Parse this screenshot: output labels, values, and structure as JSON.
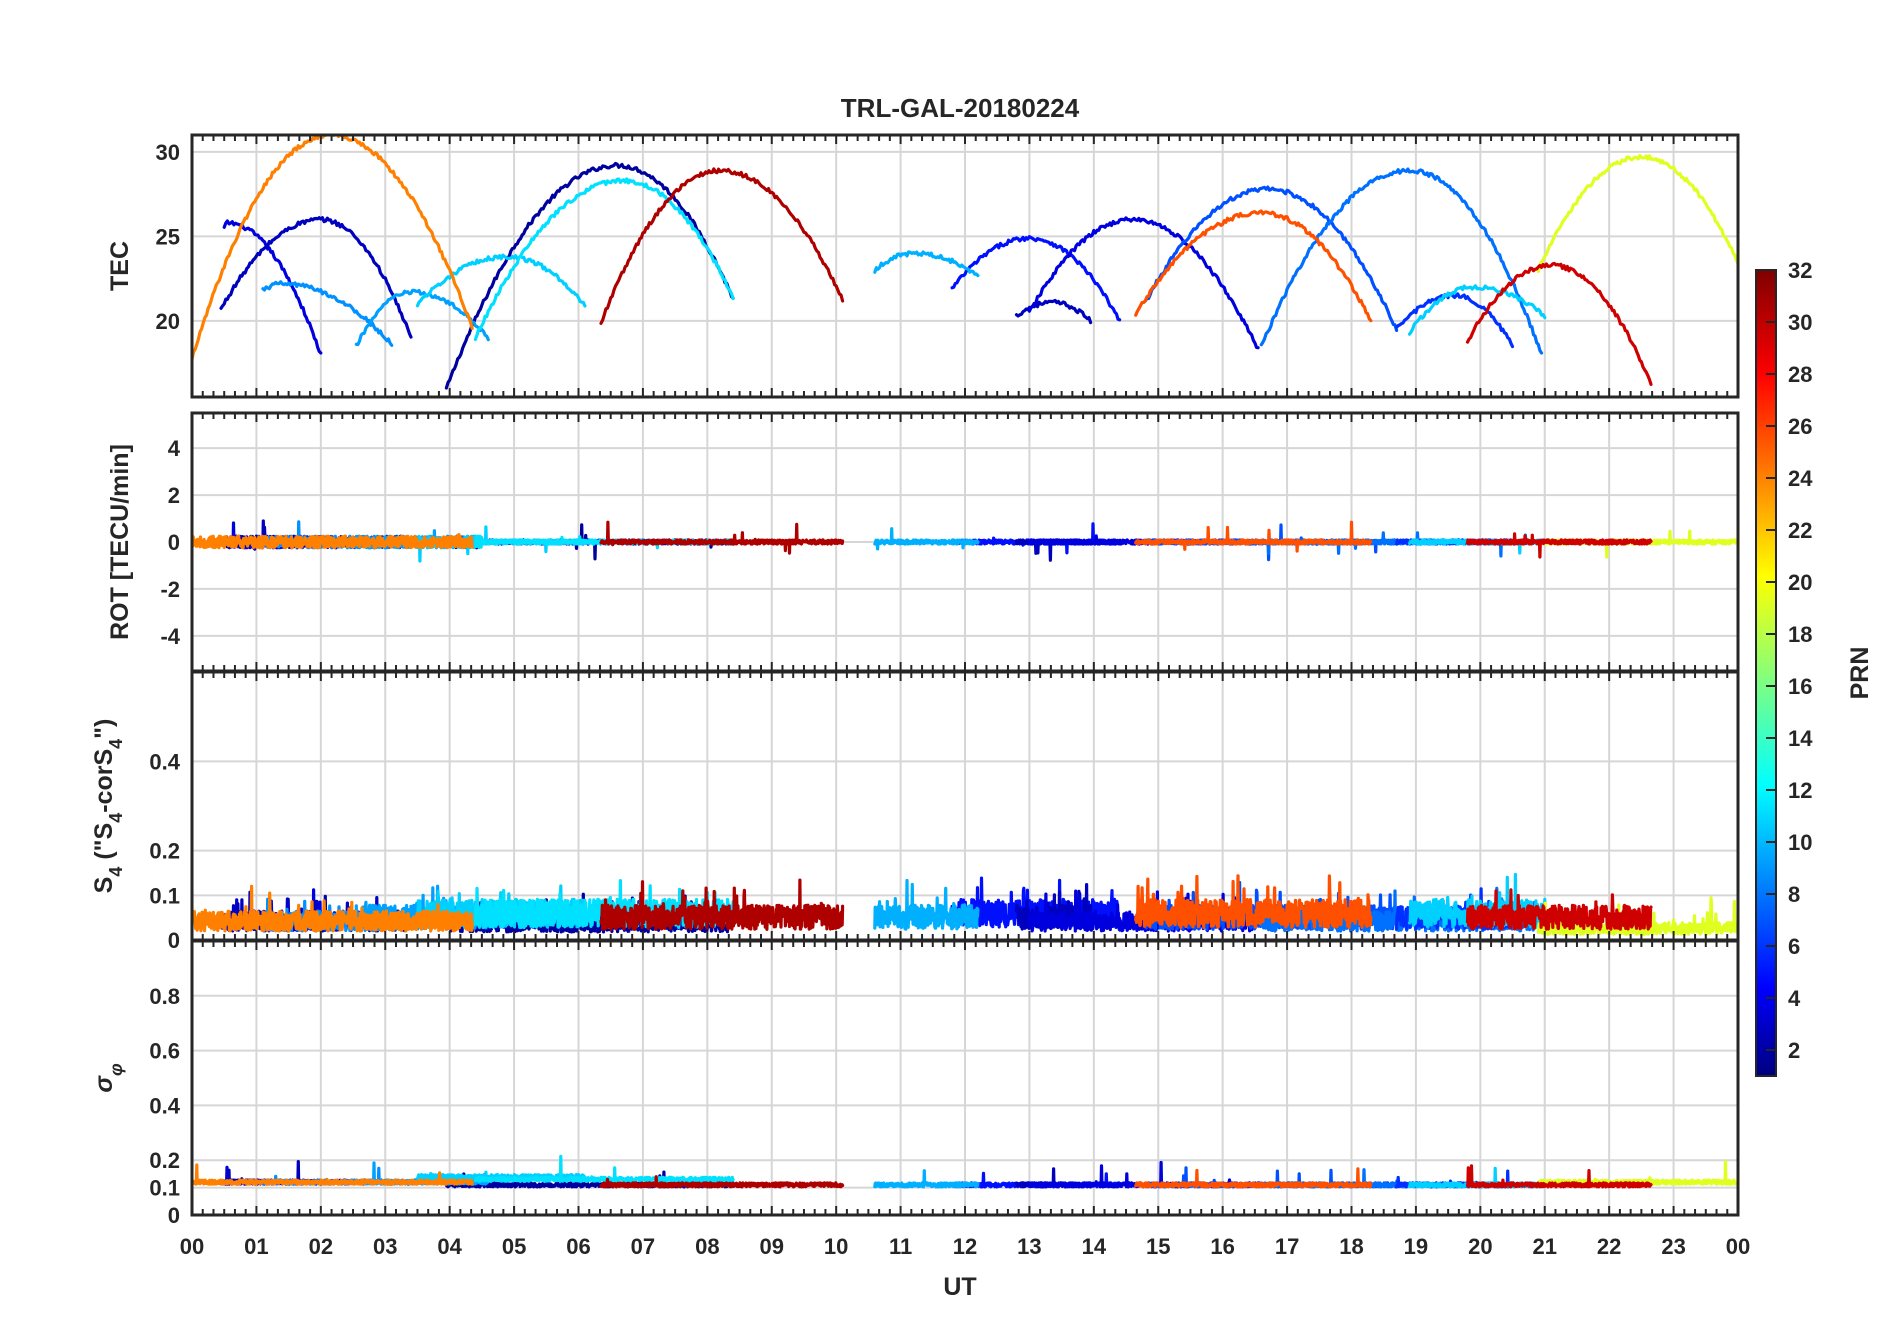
{
  "chart_data": {
    "type": "line",
    "title": "TRL-GAL-20180224",
    "xlabel": "UT",
    "x_tick_labels": [
      "00",
      "01",
      "02",
      "03",
      "04",
      "05",
      "06",
      "07",
      "08",
      "09",
      "10",
      "11",
      "12",
      "13",
      "14",
      "15",
      "16",
      "17",
      "18",
      "19",
      "20",
      "21",
      "22",
      "23",
      "00"
    ],
    "xlim": [
      0,
      24
    ],
    "grid": true,
    "colorbar": {
      "label": "PRN",
      "range": [
        1,
        32
      ],
      "ticks": [
        "2",
        "4",
        "6",
        "8",
        "10",
        "12",
        "14",
        "16",
        "18",
        "20",
        "22",
        "24",
        "26",
        "28",
        "30",
        "32"
      ],
      "colormap": "jet",
      "position": "right"
    },
    "panels": [
      {
        "id": "tec",
        "ylabel": "TEC",
        "ylim": [
          15.5,
          31
        ],
        "yticks": [
          "20",
          "25",
          "30"
        ]
      },
      {
        "id": "rot",
        "ylabel": "ROT [TECU/min]",
        "ylim": [
          -5.5,
          5.5
        ],
        "yticks": [
          "-4",
          "-2",
          "0",
          "2",
          "4"
        ]
      },
      {
        "id": "s4",
        "ylabel_parts": [
          "S",
          "4",
          " (\"S",
          "4",
          "-corS",
          "4",
          "\")"
        ],
        "ylim": [
          0,
          0.6
        ],
        "yticks": [
          "0",
          "0.1",
          "0.2",
          "0.4"
        ]
      },
      {
        "id": "sigma",
        "ylabel_parts": [
          "σ",
          "φ"
        ],
        "ylim": [
          0,
          1
        ],
        "yticks": [
          "0",
          "0.1",
          "0.2",
          "0.4",
          "0.6",
          "0.8"
        ]
      }
    ],
    "series": [
      {
        "name": "PRN 2",
        "prn": 2,
        "color": "#00009f",
        "ut_start": 3.95,
        "ut_end": 8.4,
        "peak_ut": 6.6,
        "tec_start": 16.0,
        "tec_peak": 29.2,
        "tec_end": 21.3,
        "s4_level": 0.045,
        "sigma_level": 0.11
      },
      {
        "name": "PRN 4",
        "prn": 4,
        "color": "#0000df",
        "ut_start": 0.5,
        "ut_end": 2.0,
        "peak_ut": 0.55,
        "tec_start": 25.5,
        "tec_peak": 25.8,
        "tec_end": 18.0,
        "s4_level": 0.05,
        "sigma_level": 0.12
      },
      {
        "name": "PRN 3",
        "prn": 3,
        "color": "#0000bf",
        "ut_start": 0.45,
        "ut_end": 3.4,
        "peak_ut": 2.0,
        "tec_start": 20.7,
        "tec_peak": 26.0,
        "tec_end": 19.0,
        "s4_level": 0.05,
        "sigma_level": 0.12
      },
      {
        "name": "PRN 5",
        "prn": 5,
        "color": "#0010ff",
        "ut_start": 11.8,
        "ut_end": 14.4,
        "peak_ut": 13.0,
        "tec_start": 21.9,
        "tec_peak": 24.9,
        "tec_end": 20.0,
        "s4_level": 0.07,
        "sigma_level": 0.11
      },
      {
        "name": "PRN 3b",
        "prn": 3,
        "color": "#0000bf",
        "ut_start": 12.8,
        "ut_end": 13.95,
        "peak_ut": 13.35,
        "tec_start": 20.3,
        "tec_peak": 21.1,
        "tec_end": 20.0,
        "s4_level": 0.06,
        "sigma_level": 0.11
      },
      {
        "name": "PRN 4b",
        "prn": 4,
        "color": "#0000df",
        "ut_start": 13.0,
        "ut_end": 16.55,
        "peak_ut": 14.6,
        "tec_start": 20.5,
        "tec_peak": 26.0,
        "tec_end": 18.3,
        "s4_level": 0.05,
        "sigma_level": 0.11
      },
      {
        "name": "PRN 7",
        "prn": 7,
        "color": "#0050ff",
        "ut_start": 14.8,
        "ut_end": 18.7,
        "peak_ut": 16.7,
        "tec_start": 21.1,
        "tec_peak": 27.8,
        "tec_end": 19.5,
        "s4_level": 0.06,
        "sigma_level": 0.11
      },
      {
        "name": "PRN 8",
        "prn": 8,
        "color": "#0070ff",
        "ut_start": 16.6,
        "ut_end": 20.95,
        "peak_ut": 18.9,
        "tec_start": 18.5,
        "tec_peak": 28.9,
        "tec_end": 18.0,
        "s4_level": 0.05,
        "sigma_level": 0.11
      },
      {
        "name": "PRN 9",
        "prn": 9,
        "color": "#0090ff",
        "ut_start": 1.1,
        "ut_end": 3.1,
        "peak_ut": 1.4,
        "tec_start": 21.8,
        "tec_peak": 22.2,
        "tec_end": 18.6,
        "s4_level": 0.05,
        "sigma_level": 0.12
      },
      {
        "name": "PRN 10",
        "prn": 10,
        "color": "#00a0ff",
        "ut_start": 2.55,
        "ut_end": 4.6,
        "peak_ut": 3.4,
        "tec_start": 18.5,
        "tec_peak": 21.7,
        "tec_end": 19.0,
        "s4_level": 0.06,
        "sigma_level": 0.12
      },
      {
        "name": "PRN 6",
        "prn": 6,
        "color": "#0030ff",
        "ut_start": 18.7,
        "ut_end": 20.5,
        "peak_ut": 19.6,
        "tec_start": 19.5,
        "tec_peak": 21.5,
        "tec_end": 18.5,
        "s4_level": 0.06,
        "sigma_level": 0.11
      },
      {
        "name": "PRN 11",
        "prn": 11,
        "color": "#00b0ff",
        "ut_start": 10.6,
        "ut_end": 12.2,
        "peak_ut": 11.2,
        "tec_start": 23.0,
        "tec_peak": 24.0,
        "tec_end": 22.7,
        "s4_level": 0.06,
        "sigma_level": 0.11
      },
      {
        "name": "PRN 12",
        "prn": 12,
        "color": "#00d0ff",
        "ut_start": 3.5,
        "ut_end": 6.1,
        "peak_ut": 4.9,
        "tec_start": 21.0,
        "tec_peak": 23.8,
        "tec_end": 20.9,
        "s4_level": 0.07,
        "sigma_level": 0.14
      },
      {
        "name": "PRN 13",
        "prn": 13,
        "color": "#00e0ff",
        "ut_start": 4.4,
        "ut_end": 8.4,
        "peak_ut": 6.7,
        "tec_start": 19.0,
        "tec_peak": 28.3,
        "tec_end": 21.4,
        "s4_level": 0.07,
        "sigma_level": 0.13
      },
      {
        "name": "PRN 12b",
        "prn": 12,
        "color": "#00d0ff",
        "ut_start": 18.9,
        "ut_end": 21.0,
        "peak_ut": 19.9,
        "tec_start": 19.3,
        "tec_peak": 22.0,
        "tec_end": 20.3,
        "s4_level": 0.07,
        "sigma_level": 0.11
      },
      {
        "name": "PRN 20",
        "prn": 20,
        "color": "#dfff20",
        "ut_start": 20.9,
        "ut_end": 24.0,
        "peak_ut": 22.5,
        "tec_start": 23.0,
        "tec_peak": 29.7,
        "tec_end": 23.4,
        "s4_level": 0.03,
        "sigma_level": 0.12
      },
      {
        "name": "PRN 24",
        "prn": 24,
        "color": "#ff8000",
        "ut_start": 0.0,
        "ut_end": 4.35,
        "peak_ut": 2.15,
        "tec_start": 17.8,
        "tec_peak": 31.0,
        "tec_end": 19.6,
        "s4_level": 0.05,
        "sigma_level": 0.12
      },
      {
        "name": "PRN 26",
        "prn": 26,
        "color": "#ff5000",
        "ut_start": 14.65,
        "ut_end": 18.3,
        "peak_ut": 16.6,
        "tec_start": 20.4,
        "tec_peak": 26.4,
        "tec_end": 20.0,
        "s4_level": 0.07,
        "sigma_level": 0.11
      },
      {
        "name": "PRN 30",
        "prn": 30,
        "color": "#cf0000",
        "ut_start": 19.8,
        "ut_end": 22.65,
        "peak_ut": 21.1,
        "tec_start": 18.8,
        "tec_peak": 23.3,
        "tec_end": 16.3,
        "s4_level": 0.06,
        "sigma_level": 0.11
      },
      {
        "name": "PRN 31",
        "prn": 31,
        "color": "#af0000",
        "ut_start": 6.35,
        "ut_end": 10.1,
        "peak_ut": 8.2,
        "tec_start": 19.9,
        "tec_peak": 28.9,
        "tec_end": 21.3,
        "s4_level": 0.06,
        "sigma_level": 0.11
      }
    ]
  }
}
